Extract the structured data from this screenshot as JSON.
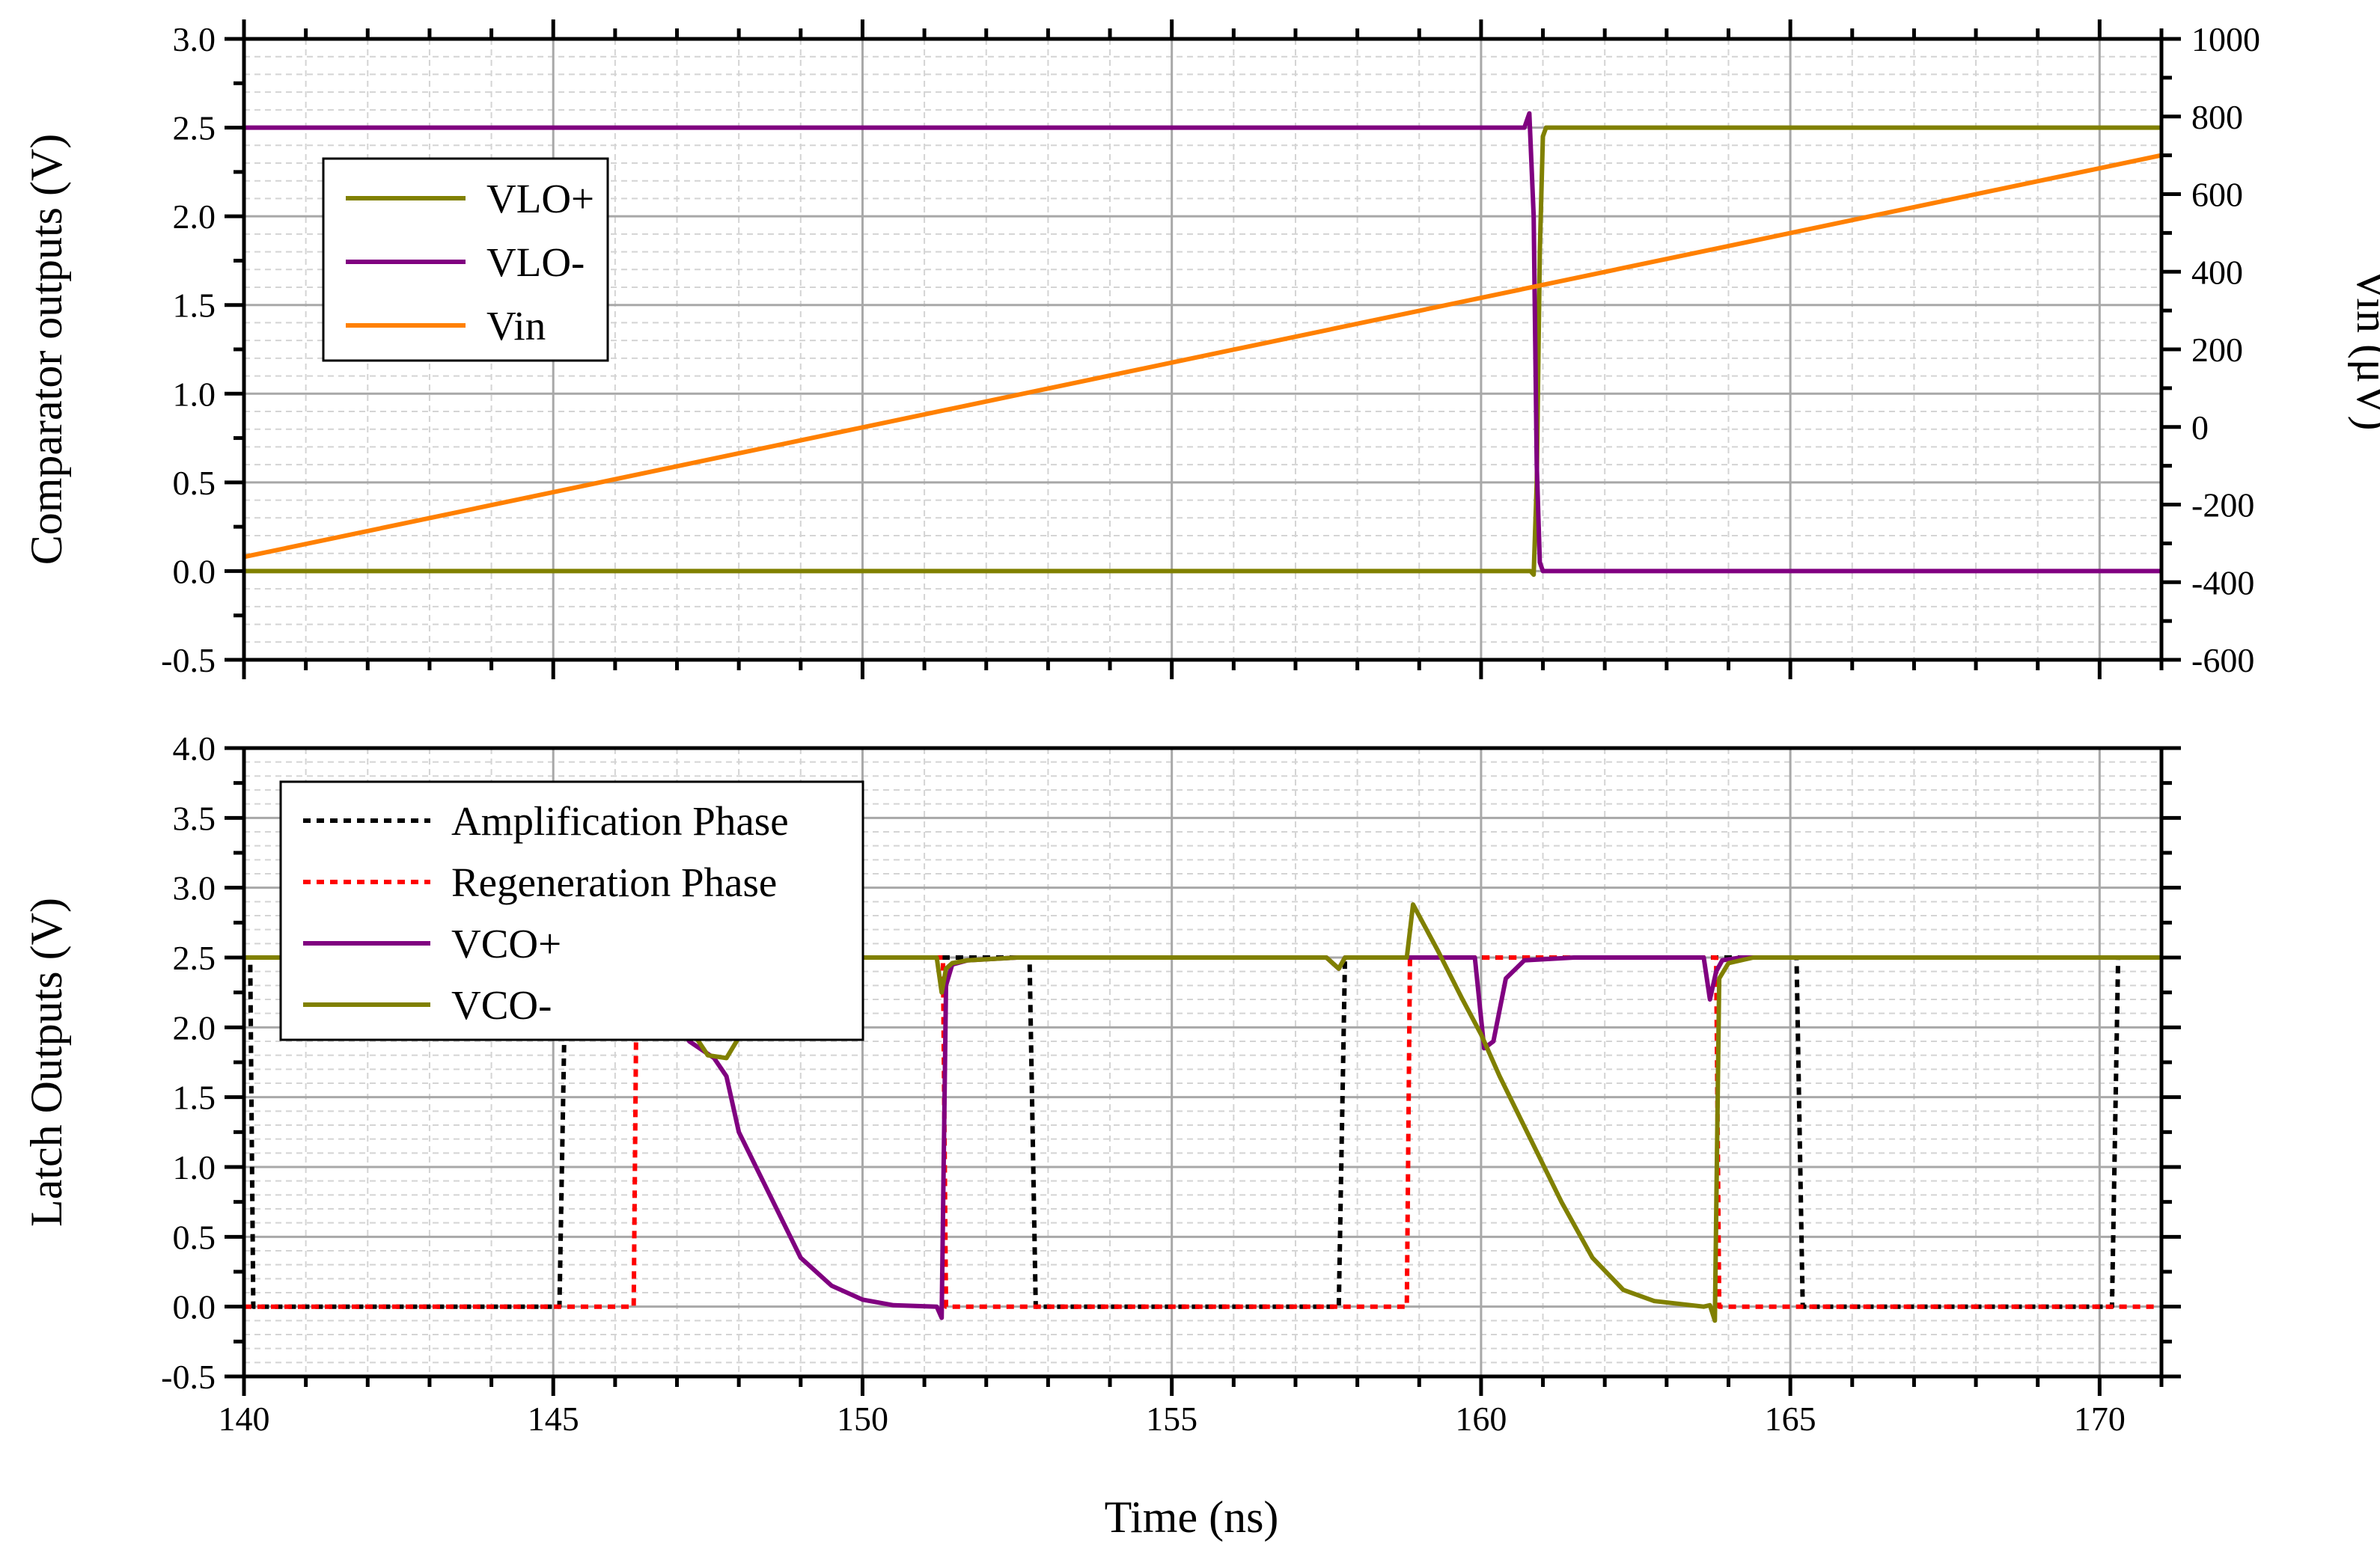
{
  "chart_data": [
    {
      "type": "line",
      "panel": "top",
      "xlabel": "",
      "ylabel": "Comparator outputs (V)",
      "y2label": "Vin (μV)",
      "xlim": [
        140,
        171
      ],
      "ylim": [
        -0.5,
        3.0
      ],
      "y2lim": [
        -600,
        1000
      ],
      "x_ticks": [
        140,
        145,
        150,
        155,
        160,
        165,
        170
      ],
      "y_ticks": [
        "-0.5",
        "0.0",
        "0.5",
        "1.0",
        "1.5",
        "2.0",
        "2.5",
        "3.0"
      ],
      "y2_ticks": [
        "-600",
        "-400",
        "-200",
        "0",
        "200",
        "400",
        "600",
        "800",
        "1000"
      ],
      "grid": true,
      "legend_position": "top-left",
      "series": [
        {
          "name": "VLO+",
          "color": "#808000",
          "axis": "left",
          "dash": "solid",
          "x": [
            140,
            160.8,
            160.85,
            160.9,
            160.95,
            161.0,
            161.05,
            171
          ],
          "y": [
            0.0,
            0.0,
            -0.02,
            0.5,
            1.8,
            2.45,
            2.5,
            2.5
          ]
        },
        {
          "name": "VLO-",
          "color": "#800080",
          "axis": "left",
          "dash": "solid",
          "x": [
            140,
            160.7,
            160.78,
            160.85,
            160.9,
            160.95,
            161.0,
            171
          ],
          "y": [
            2.5,
            2.5,
            2.58,
            2.0,
            0.6,
            0.05,
            0.0,
            0.0
          ]
        },
        {
          "name": "Vin",
          "color": "#ff8000",
          "axis": "right",
          "dash": "solid",
          "x": [
            140,
            171
          ],
          "y": [
            -335,
            700
          ]
        }
      ]
    },
    {
      "type": "line",
      "panel": "bottom",
      "xlabel": "Time (ns)",
      "ylabel": "Latch Outputs (V)",
      "xlim": [
        140,
        171
      ],
      "ylim": [
        -0.5,
        4.0
      ],
      "x_ticks": [
        "140",
        "145",
        "150",
        "155",
        "160",
        "165",
        "170"
      ],
      "y_ticks": [
        "-0.5",
        "0.0",
        "0.5",
        "1.0",
        "1.5",
        "2.0",
        "2.5",
        "3.0",
        "3.5",
        "4.0"
      ],
      "grid": true,
      "legend_position": "top-left",
      "series": [
        {
          "name": "Amplification Phase",
          "color": "#000000",
          "dash": "dotted",
          "x": [
            140,
            140.1,
            140.15,
            145.1,
            145.2,
            152.7,
            152.8,
            157.7,
            157.8,
            165.1,
            165.2,
            170.2,
            170.3,
            171
          ],
          "y": [
            2.5,
            2.5,
            0.0,
            0.0,
            2.5,
            2.5,
            0.0,
            0.0,
            2.5,
            2.5,
            0.0,
            0.0,
            2.5,
            2.5
          ]
        },
        {
          "name": "Regeneration Phase",
          "color": "#ff0000",
          "dash": "dotted",
          "x": [
            140,
            146.3,
            146.35,
            151.3,
            151.35,
            158.8,
            158.85,
            163.8,
            163.85,
            171
          ],
          "y": [
            0.0,
            0.0,
            2.5,
            2.5,
            0.0,
            0.0,
            2.5,
            2.5,
            0.0,
            0.0
          ]
        },
        {
          "name": "VCO+",
          "color": "#800080",
          "dash": "solid",
          "x": [
            140,
            146.3,
            146.8,
            147.2,
            147.6,
            147.8,
            148.0,
            148.5,
            149.0,
            149.5,
            150.0,
            150.5,
            151.2,
            151.28,
            151.35,
            151.45,
            151.7,
            152.5,
            157.5,
            157.7,
            157.8,
            158.0,
            158.85,
            159.2,
            159.6,
            159.9,
            160.05,
            160.2,
            160.4,
            160.7,
            161.5,
            163.6,
            163.7,
            163.8,
            163.9,
            164.2,
            171
          ],
          "y": [
            2.5,
            2.5,
            2.2,
            1.9,
            1.78,
            1.65,
            1.25,
            0.8,
            0.35,
            0.15,
            0.05,
            0.01,
            0.0,
            -0.08,
            2.3,
            2.45,
            2.48,
            2.5,
            2.5,
            2.42,
            2.5,
            2.5,
            2.5,
            2.5,
            2.5,
            2.5,
            1.85,
            1.9,
            2.35,
            2.48,
            2.5,
            2.5,
            2.2,
            2.4,
            2.48,
            2.5,
            2.5
          ]
        },
        {
          "name": "VCO-",
          "color": "#808000",
          "dash": "solid",
          "x": [
            140,
            146.3,
            146.8,
            147.2,
            147.5,
            147.8,
            148.1,
            148.6,
            151.2,
            151.28,
            151.35,
            151.45,
            151.7,
            152.5,
            157.5,
            157.7,
            157.8,
            158.0,
            158.8,
            158.9,
            159.3,
            159.7,
            160.0,
            160.3,
            160.8,
            161.3,
            161.8,
            162.3,
            162.8,
            163.6,
            163.7,
            163.78,
            163.85,
            164.0,
            164.4,
            171
          ],
          "y": [
            2.5,
            2.5,
            2.35,
            2.0,
            1.8,
            1.78,
            2.0,
            2.5,
            2.5,
            2.25,
            2.42,
            2.46,
            2.48,
            2.5,
            2.5,
            2.42,
            2.5,
            2.5,
            2.5,
            2.88,
            2.55,
            2.2,
            1.95,
            1.65,
            1.2,
            0.75,
            0.35,
            0.12,
            0.04,
            0.0,
            0.01,
            -0.1,
            2.35,
            2.46,
            2.5,
            2.5
          ]
        }
      ]
    }
  ]
}
